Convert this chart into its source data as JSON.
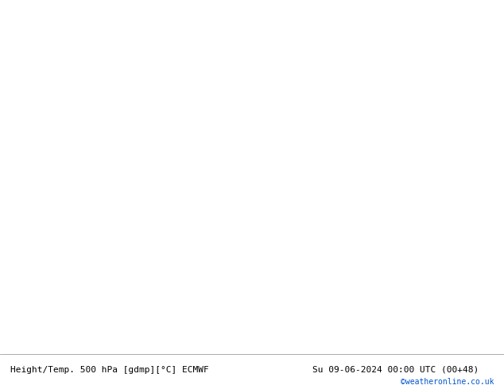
{
  "title_left": "Height/Temp. 500 hPa [gdmp][°C] ECMWF",
  "title_right": "Su 09-06-2024 00:00 UTC (00+48)",
  "credit": "©weatheronline.co.uk",
  "fig_width": 6.34,
  "fig_height": 4.9,
  "dpi": 100,
  "land_color": "#c8e8a0",
  "ocean_color": "#d8d8d8",
  "coast_color": "#888888",
  "border_color": "#aaaaaa",
  "black_contour_color": "#000000",
  "orange_contour_color": "#e8960a",
  "red_contour_color": "#cc0000",
  "teal_contour_color": "#00aaaa",
  "green_contour_color": "#77bb22",
  "footer_fontsize": 8,
  "credit_fontsize": 7,
  "credit_color": "#0055cc",
  "map_extent": [
    -45,
    45,
    30,
    75
  ],
  "label_fontsize": 6.5
}
